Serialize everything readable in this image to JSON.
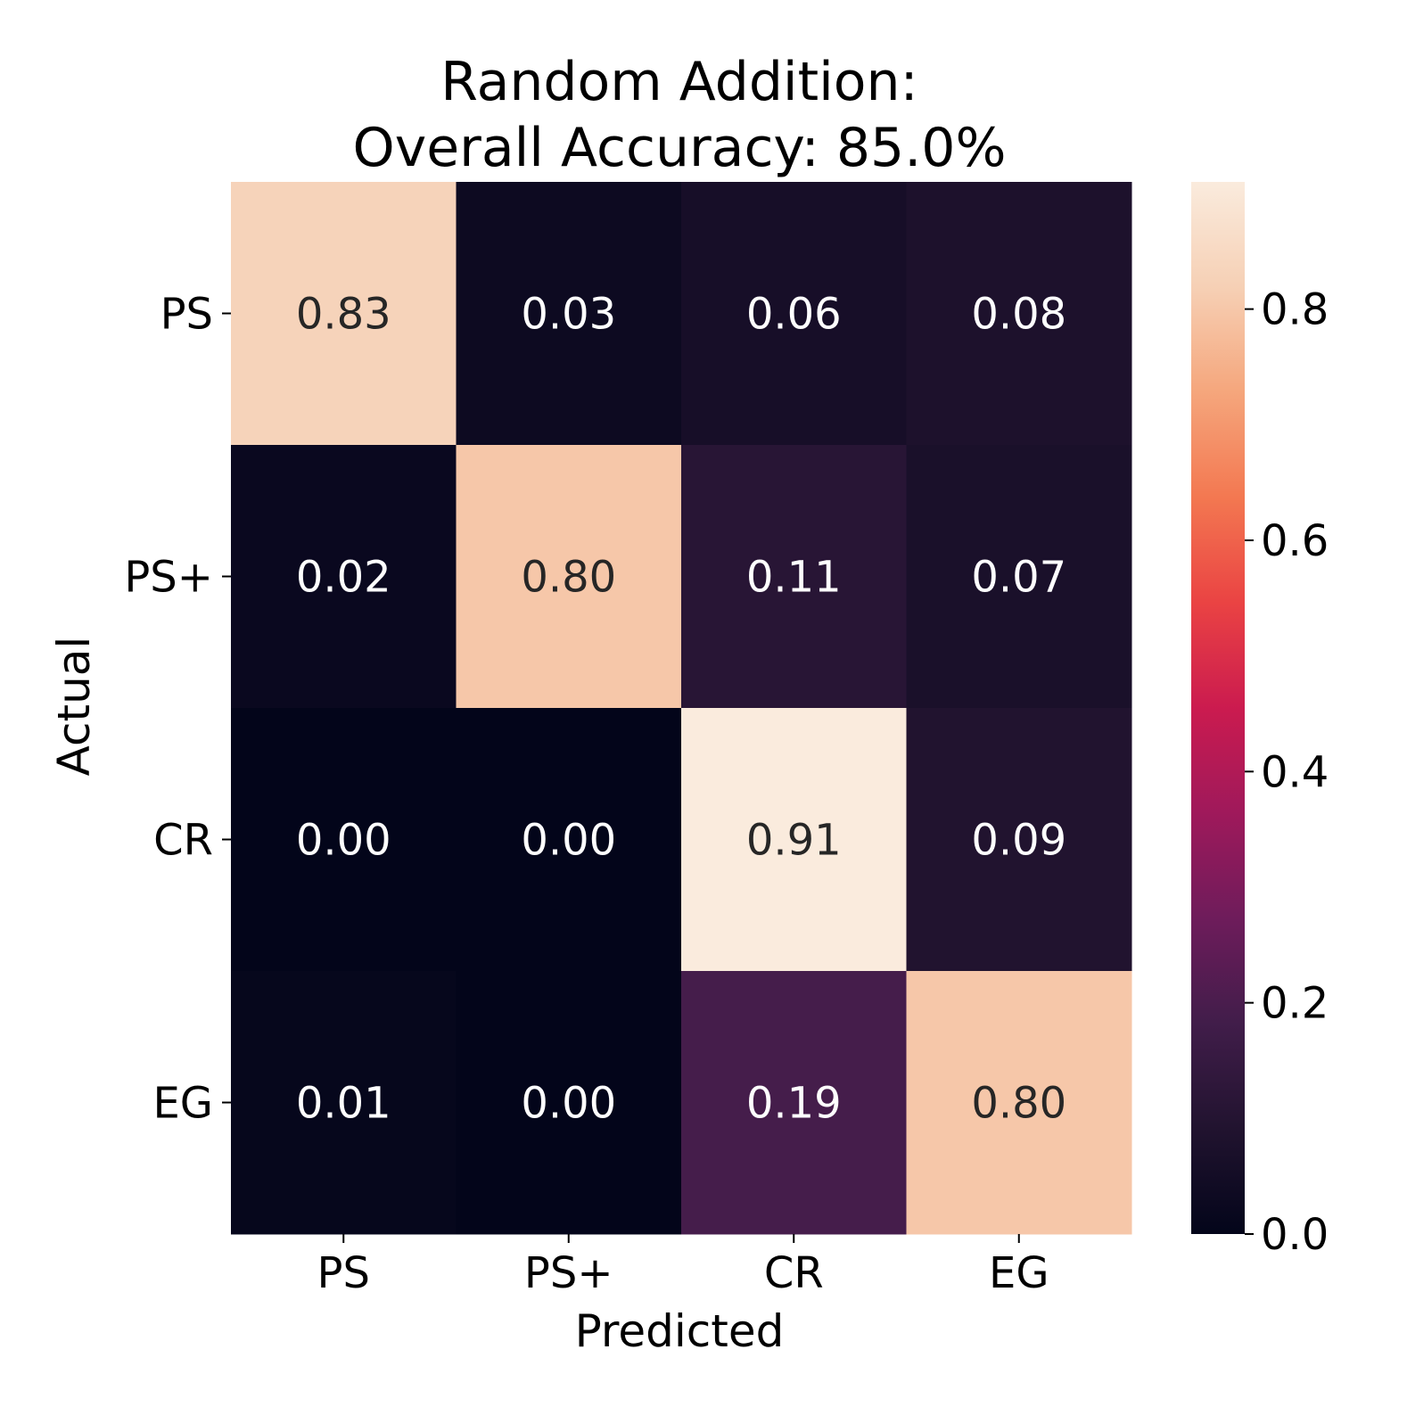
{
  "chart_data": {
    "type": "heatmap",
    "title_lines": [
      "Random Addition:",
      "Overall Accuracy: 85.0%"
    ],
    "xlabel": "Predicted",
    "ylabel": "Actual",
    "x_categories": [
      "PS",
      "PS+",
      "CR",
      "EG"
    ],
    "y_categories": [
      "PS",
      "PS+",
      "CR",
      "EG"
    ],
    "values": [
      [
        0.83,
        0.03,
        0.06,
        0.08
      ],
      [
        0.02,
        0.8,
        0.11,
        0.07
      ],
      [
        0.0,
        0.0,
        0.91,
        0.09
      ],
      [
        0.01,
        0.0,
        0.19,
        0.8
      ]
    ],
    "value_labels": [
      [
        "0.83",
        "0.03",
        "0.06",
        "0.08"
      ],
      [
        "0.02",
        "0.80",
        "0.11",
        "0.07"
      ],
      [
        "0.00",
        "0.00",
        "0.91",
        "0.09"
      ],
      [
        "0.01",
        "0.00",
        "0.19",
        "0.80"
      ]
    ],
    "colorbar": {
      "colormap": "rocket",
      "range": [
        0.0,
        0.91
      ],
      "ticks": [
        0.0,
        0.2,
        0.4,
        0.6,
        0.8
      ],
      "tick_labels": [
        "0.0",
        "0.2",
        "0.4",
        "0.6",
        "0.8"
      ]
    }
  }
}
